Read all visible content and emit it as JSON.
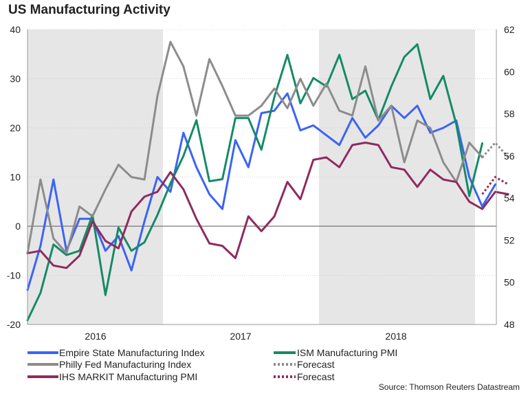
{
  "chart_data": {
    "type": "line",
    "title": "US Manufacturing Activity",
    "source": "Source: Thomson Reuters Datastream",
    "x_labels": [
      "2016",
      "2017",
      "2018"
    ],
    "left_axis": {
      "ylim": [
        -20,
        40
      ],
      "ticks": [
        40,
        30,
        20,
        10,
        0,
        -10,
        -20
      ]
    },
    "right_axis": {
      "ylim": [
        48,
        62
      ],
      "ticks": [
        62,
        60,
        58,
        56,
        54,
        52,
        50,
        48
      ]
    },
    "shaded_years": [
      "2016",
      "2018"
    ],
    "grid": true,
    "series": [
      {
        "name": "Empire State Manufacturing Index",
        "axis": "left",
        "color": "#3b63f5",
        "width": 3,
        "values": [
          -13,
          -4,
          9.5,
          -5,
          1.5,
          1.5,
          -5,
          -2,
          -9,
          1,
          10,
          7,
          19,
          12,
          6.5,
          3.5,
          17.5,
          12,
          23,
          23.5,
          27,
          19.5,
          20.5,
          18.5,
          16.5,
          22,
          18,
          20.5,
          24.5,
          22,
          24.5,
          19,
          20,
          21.5,
          10,
          4,
          8.5
        ]
      },
      {
        "name": "ISM Manufacturing PMI",
        "axis": "left_pmi",
        "color": "#158a67",
        "width": 3,
        "values": [
          48.2,
          49.5,
          51.8,
          51.3,
          51.5,
          53.2,
          49.4,
          52.6,
          51.5,
          51.9,
          53.2,
          54.7,
          56.0,
          57.7,
          54.8,
          54.9,
          57.8,
          57.8,
          56.3,
          58.8,
          60.8,
          58.5,
          59.7,
          59.3,
          60.8,
          58.7,
          59.1,
          57.7,
          59.3,
          60.7,
          61.3,
          58.7,
          59.8,
          57.5,
          54.1,
          56.6
        ]
      },
      {
        "name": "Philly Fed Manufacturing Index",
        "axis": "left",
        "color": "#8c8c8c",
        "width": 3,
        "values": [
          -5.5,
          9.5,
          -2.5,
          -5.5,
          4,
          2,
          7.5,
          12.5,
          10,
          9.5,
          26.5,
          37.5,
          32.5,
          22.5,
          34,
          28.5,
          22.5,
          22.5,
          24.5,
          28,
          24,
          30,
          24.5,
          29,
          23.5,
          22.5,
          32.5,
          21.5,
          24.5,
          13,
          21.5,
          20,
          13,
          9,
          17,
          14
        ]
      },
      {
        "name": "IHS MARKIT Manufacturing PMI",
        "axis": "left",
        "color": "#8e2b5f",
        "width": 3,
        "values": [
          -5.5,
          -5,
          -8,
          -8.5,
          -6,
          1,
          -3,
          -4.5,
          3,
          6,
          7,
          11,
          7.5,
          1.5,
          -3.5,
          -4,
          -6.5,
          2,
          -1,
          2,
          9,
          5.5,
          13.5,
          14,
          12,
          16.5,
          17,
          16.5,
          12,
          11.5,
          8,
          11.5,
          9.5,
          9,
          5,
          3.5,
          7,
          6.5
        ]
      }
    ],
    "forecasts": [
      {
        "name": "Forecast",
        "color": "#8c8c8c",
        "style": "dotted",
        "values": [
          17,
          14
        ]
      },
      {
        "name": "Forecast",
        "color": "#8e2b5f",
        "style": "dotted",
        "values": [
          10,
          8.5
        ]
      }
    ]
  },
  "legend": {
    "empire": "Empire State Manufacturing Index",
    "ism": "ISM Manufacturing PMI",
    "philly": "Philly Fed Manufacturing Index",
    "forecast_grey": "Forecast",
    "ihs": "IHS MARKIT Manufacturing PMI",
    "forecast_maroon": "Forecast"
  }
}
